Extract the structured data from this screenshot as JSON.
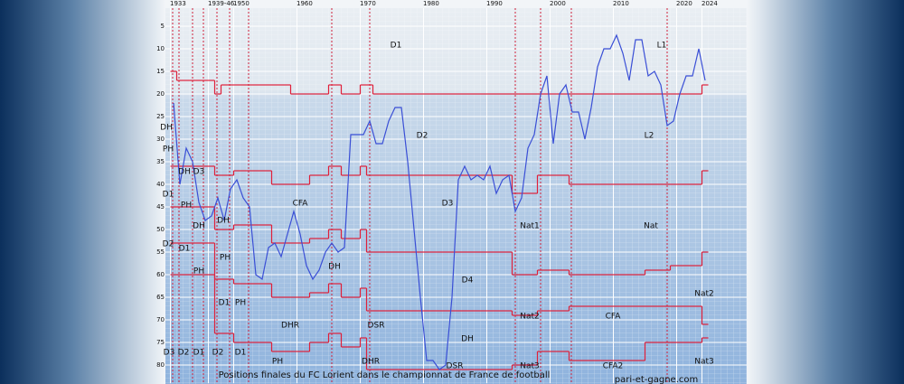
{
  "chart_data": {
    "type": "line",
    "title": "Positions finales du FC Lorient dans le championnat de France de football",
    "source": "pari-et-gagne.com",
    "categories": [
      "1933",
      null,
      null,
      null,
      null,
      null,
      "1939-46",
      null,
      null,
      null,
      "1950",
      null,
      null,
      null,
      null,
      null,
      null,
      null,
      null,
      null,
      "1960",
      null,
      null,
      null,
      null,
      null,
      null,
      null,
      null,
      null,
      "1970",
      null,
      null,
      null,
      null,
      null,
      null,
      null,
      null,
      null,
      "1980",
      null,
      null,
      null,
      null,
      null,
      null,
      null,
      null,
      null,
      "1990",
      null,
      null,
      null,
      null,
      null,
      null,
      null,
      null,
      null,
      "2000",
      null,
      null,
      null,
      null,
      null,
      null,
      null,
      null,
      null,
      "2010",
      null,
      null,
      null,
      null,
      null,
      null,
      null,
      null,
      null,
      "2020",
      null,
      null,
      null,
      "2024"
    ],
    "values": [
      22,
      40,
      32,
      35,
      44,
      48,
      47,
      43,
      48,
      41,
      39,
      43,
      45,
      60,
      61,
      54,
      53,
      56,
      51,
      46,
      51,
      58,
      61,
      59,
      55,
      53,
      55,
      54,
      29,
      29,
      29,
      26,
      31,
      31,
      26,
      23,
      23,
      35,
      50,
      65,
      79,
      79,
      81,
      80,
      65,
      39,
      36,
      39,
      38,
      39,
      36,
      42,
      39,
      38,
      46,
      43,
      32,
      29,
      20,
      16,
      31,
      20,
      18,
      24,
      24,
      30,
      23,
      14,
      10,
      10,
      7,
      11,
      17,
      8,
      8,
      16,
      15,
      18,
      27,
      26,
      20,
      16,
      16,
      10,
      17
    ],
    "color": "#3a4fd6",
    "boundaries": [
      {
        "color": "#e0203a",
        "values": [
          15,
          17,
          17,
          17,
          17,
          17,
          17,
          20,
          18,
          18,
          18,
          18,
          18,
          18,
          18,
          18,
          18,
          18,
          18,
          20,
          20,
          20,
          20,
          20,
          20,
          18,
          18,
          20,
          20,
          20,
          18,
          18,
          20,
          20,
          20,
          20,
          20,
          20,
          20,
          20,
          20,
          20,
          20,
          20,
          20,
          20,
          20,
          20,
          20,
          20,
          20,
          20,
          20,
          20,
          20,
          20,
          20,
          20,
          20,
          20,
          20,
          20,
          20,
          20,
          20,
          20,
          20,
          20,
          20,
          20,
          20,
          20,
          20,
          20,
          20,
          20,
          20,
          20,
          20,
          20,
          20,
          20,
          20,
          20,
          18
        ]
      },
      {
        "color": "#e0203a",
        "values": [
          36,
          36,
          36,
          36,
          36,
          36,
          36,
          38,
          38,
          38,
          37,
          37,
          37,
          37,
          37,
          37,
          40,
          40,
          40,
          40,
          40,
          40,
          38,
          38,
          38,
          36,
          36,
          38,
          38,
          38,
          36,
          38,
          38,
          38,
          38,
          38,
          38,
          38,
          38,
          38,
          38,
          38,
          38,
          38,
          38,
          38,
          38,
          38,
          38,
          38,
          38,
          38,
          38,
          38,
          42,
          42,
          42,
          42,
          38,
          38,
          38,
          38,
          38,
          40,
          40,
          40,
          40,
          40,
          40,
          40,
          40,
          40,
          40,
          40,
          40,
          40,
          40,
          40,
          40,
          40,
          40,
          40,
          40,
          40,
          37
        ]
      },
      {
        "color": "#e0203a",
        "values": [
          45,
          45,
          45,
          45,
          45,
          45,
          45,
          50,
          50,
          50,
          49,
          49,
          49,
          49,
          49,
          49,
          53,
          53,
          53,
          53,
          53,
          53,
          52,
          52,
          52,
          50,
          50,
          52,
          52,
          52,
          50,
          55,
          55,
          55,
          55,
          55,
          55,
          55,
          55,
          55,
          55,
          55,
          55,
          55,
          55,
          55,
          55,
          55,
          55,
          55,
          55,
          55,
          55,
          55,
          60,
          60,
          60,
          60,
          59,
          59,
          59,
          59,
          59,
          60,
          60,
          60,
          60,
          60,
          60,
          60,
          60,
          60,
          60,
          60,
          60,
          59,
          59,
          59,
          59,
          58,
          58,
          58,
          58,
          58,
          55
        ]
      },
      {
        "color": "#e0203a",
        "values": [
          53,
          53,
          53,
          53,
          53,
          53,
          53,
          61,
          61,
          61,
          62,
          62,
          62,
          62,
          62,
          62,
          65,
          65,
          65,
          65,
          65,
          65,
          64,
          64,
          64,
          62,
          62,
          65,
          65,
          65,
          63,
          68,
          68,
          68,
          68,
          68,
          68,
          68,
          68,
          68,
          68,
          68,
          68,
          68,
          68,
          68,
          68,
          68,
          68,
          68,
          68,
          68,
          68,
          68,
          69,
          69,
          69,
          69,
          68,
          68,
          68,
          68,
          68,
          67,
          67,
          67,
          67,
          67,
          67,
          67,
          67,
          67,
          67,
          67,
          67,
          67,
          67,
          67,
          67,
          67,
          67,
          67,
          67,
          67,
          71
        ]
      },
      {
        "color": "#e0203a",
        "values": [
          60,
          60,
          60,
          60,
          60,
          60,
          60,
          73,
          73,
          73,
          75,
          75,
          75,
          75,
          75,
          75,
          77,
          77,
          77,
          77,
          77,
          77,
          75,
          75,
          75,
          73,
          73,
          76,
          76,
          76,
          74,
          81,
          81,
          81,
          81,
          81,
          81,
          81,
          81,
          81,
          81,
          81,
          81,
          81,
          81,
          81,
          81,
          81,
          81,
          81,
          81,
          81,
          81,
          81,
          80,
          80,
          80,
          80,
          77,
          77,
          77,
          77,
          77,
          79,
          79,
          79,
          79,
          79,
          79,
          79,
          79,
          79,
          79,
          79,
          79,
          75,
          75,
          75,
          75,
          75,
          75,
          75,
          75,
          75,
          74
        ]
      }
    ],
    "ylim": [
      1,
      84
    ],
    "yticks": [
      5,
      10,
      15,
      20,
      25,
      30,
      35,
      40,
      45,
      50,
      55,
      60,
      65,
      70,
      75,
      80
    ],
    "inverted": true,
    "grid": true,
    "annotations": [
      "D1",
      "L1",
      "D2",
      "L2",
      "DH",
      "PH",
      "DH",
      "D3",
      "D1",
      "PH",
      "DH",
      "DH",
      "D2",
      "D1",
      "PH",
      "PH",
      "D1",
      "PH",
      "DHR",
      "DSR",
      "D3",
      "D2",
      "D1",
      "D2",
      "D1",
      "PH",
      "DHR",
      "DSR",
      "DH",
      "D4",
      "D3",
      "CFA",
      "DH",
      "Nat1",
      "Nat",
      "Nat2",
      "CFA",
      "Nat2",
      "Nat3",
      "CFA2",
      "Nat3"
    ]
  }
}
